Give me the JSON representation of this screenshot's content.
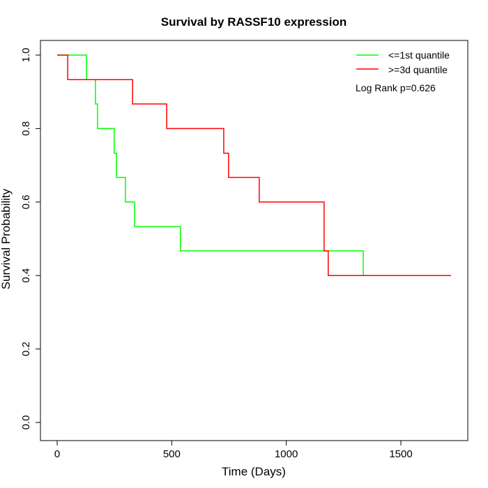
{
  "chart_data": {
    "type": "line",
    "title": "Survival by RASSF10 expression",
    "xlabel": "Time (Days)",
    "ylabel": "Survival Probability",
    "xlim": [
      0,
      1730
    ],
    "ylim": [
      0,
      1
    ],
    "xticks": [
      "0",
      "500",
      "1000",
      "1500"
    ],
    "xtick_values": [
      0,
      500,
      1000,
      1500
    ],
    "yticks": [
      "0.0",
      "0.2",
      "0.4",
      "0.6",
      "0.8",
      "1.0"
    ],
    "ytick_values": [
      0,
      0.2,
      0.4,
      0.6,
      0.8,
      1.0
    ],
    "grid": false,
    "legend_position": "top-right",
    "annotation": "Log Rank p=0.626",
    "series": [
      {
        "name": "<=1st quantile",
        "color": "#00ff00",
        "step": true,
        "x": [
          0,
          128,
          167,
          176,
          249,
          259,
          298,
          338,
          538,
          1336,
          1719
        ],
        "y": [
          1.0,
          0.933,
          0.867,
          0.8,
          0.733,
          0.667,
          0.6,
          0.533,
          0.467,
          0.4,
          0.4
        ]
      },
      {
        "name": ">=3d quantile",
        "color": "#ff0000",
        "step": true,
        "x": [
          0,
          46,
          329,
          478,
          727,
          748,
          882,
          1165,
          1183,
          1719
        ],
        "y": [
          1.0,
          0.933,
          0.867,
          0.8,
          0.733,
          0.667,
          0.6,
          0.467,
          0.4,
          0.4
        ]
      }
    ]
  }
}
